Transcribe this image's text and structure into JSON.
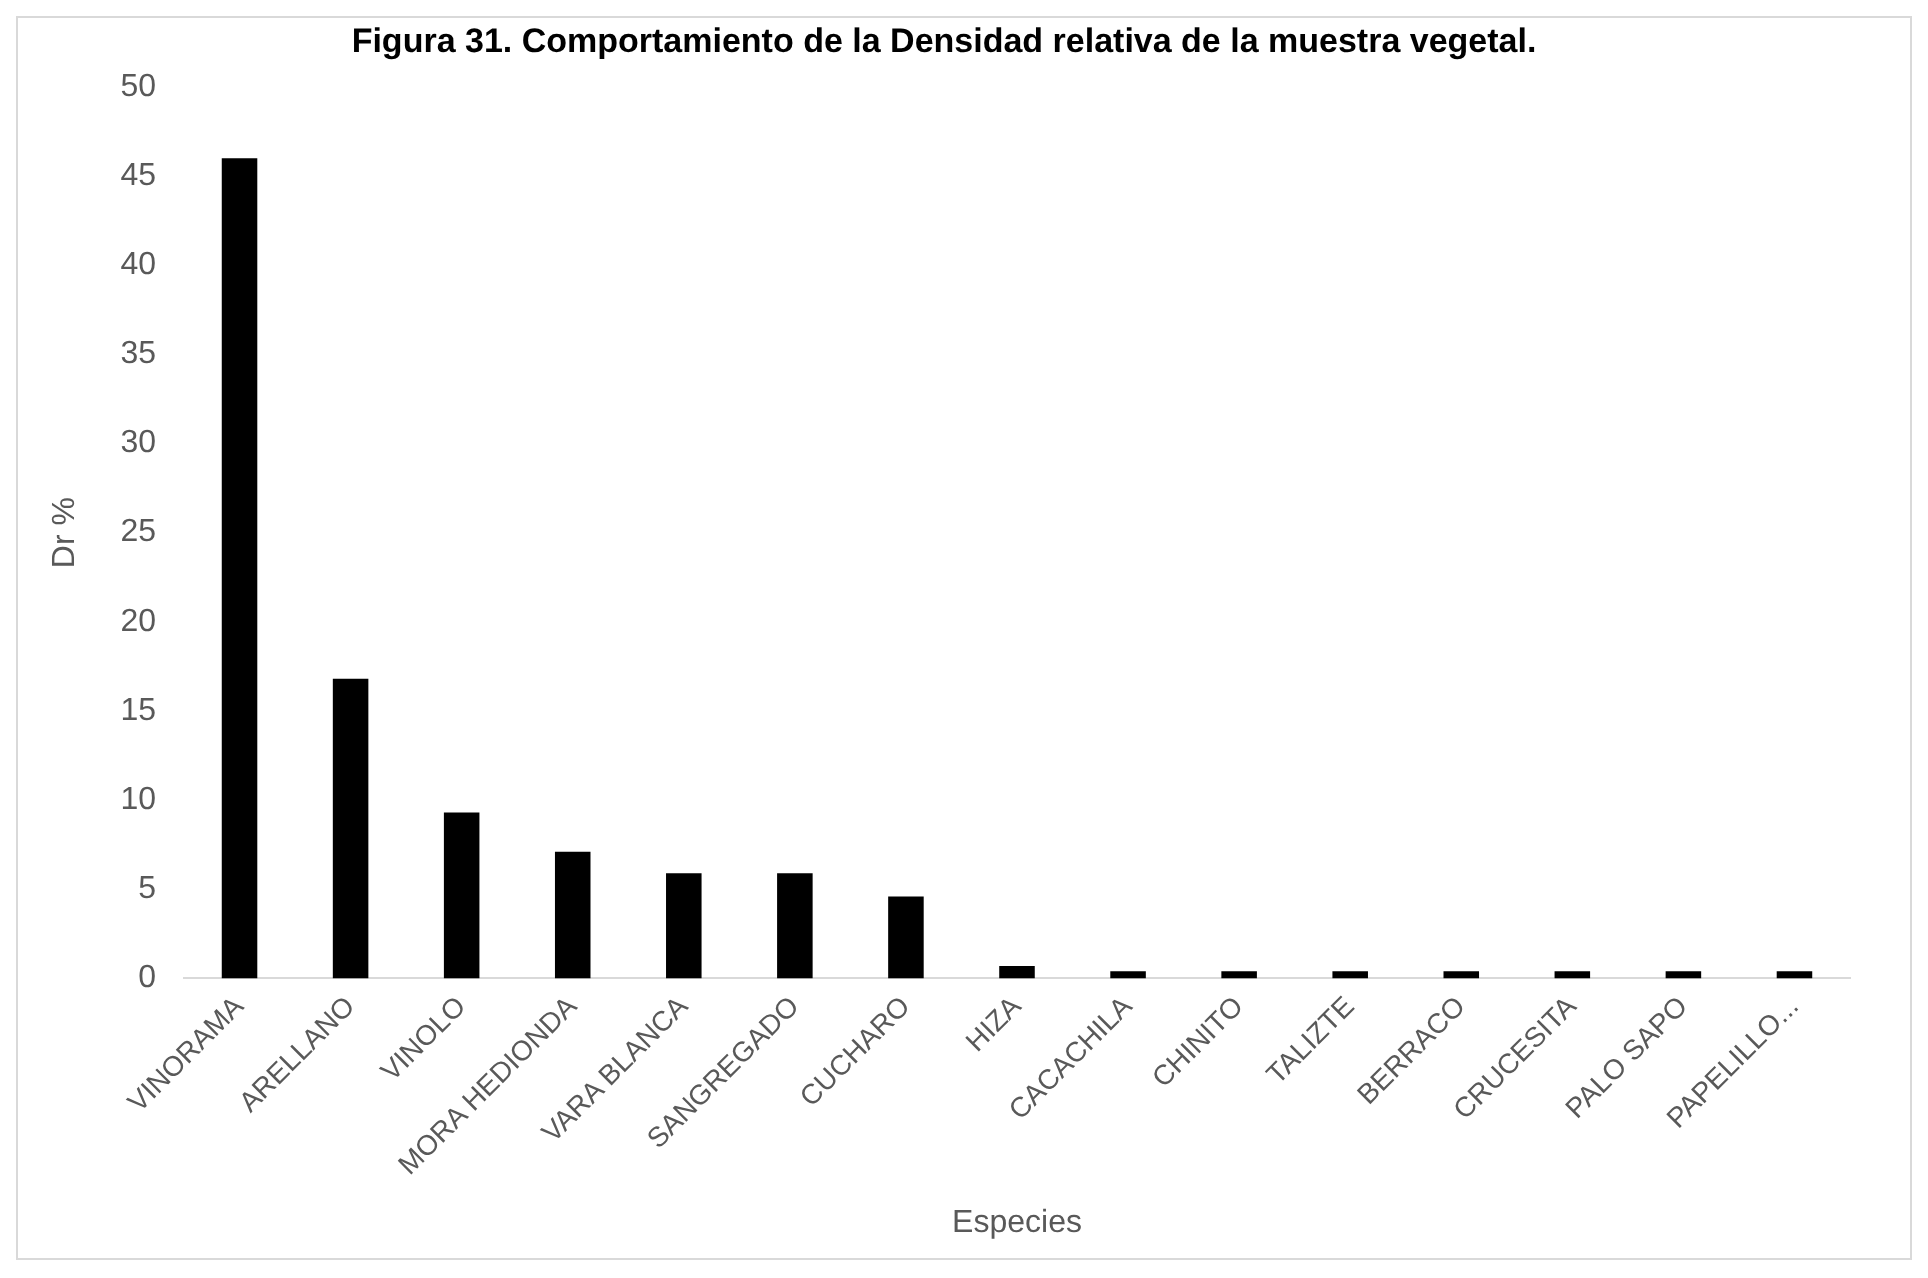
{
  "chart_data": {
    "type": "bar",
    "title": "Figura 31. Comportamiento de la Densidad relativa de la muestra vegetal.",
    "xlabel": "Especies",
    "ylabel": "Dr %",
    "categories": [
      "VINORAMA",
      "ARELLANO",
      "VINOLO",
      "MORA HEDIONDA",
      "VARA BLANCA",
      "SANGREGADO",
      "CUCHARO",
      "HIZA",
      "CACACHILA",
      "CHINITO",
      "TALIZTE",
      "BERRACO",
      "CRUCESITA",
      "PALO SAPO",
      "PAPELILLO..."
    ],
    "values": [
      46,
      16.8,
      9.3,
      7.1,
      5.9,
      5.9,
      4.6,
      0.7,
      0.4,
      0.4,
      0.4,
      0.4,
      0.4,
      0.4,
      0.4
    ],
    "color": "#000000",
    "ylim": [
      0,
      50
    ],
    "yticks": [
      0,
      5,
      10,
      15,
      20,
      25,
      30,
      35,
      40,
      45,
      50
    ],
    "grid": false
  }
}
